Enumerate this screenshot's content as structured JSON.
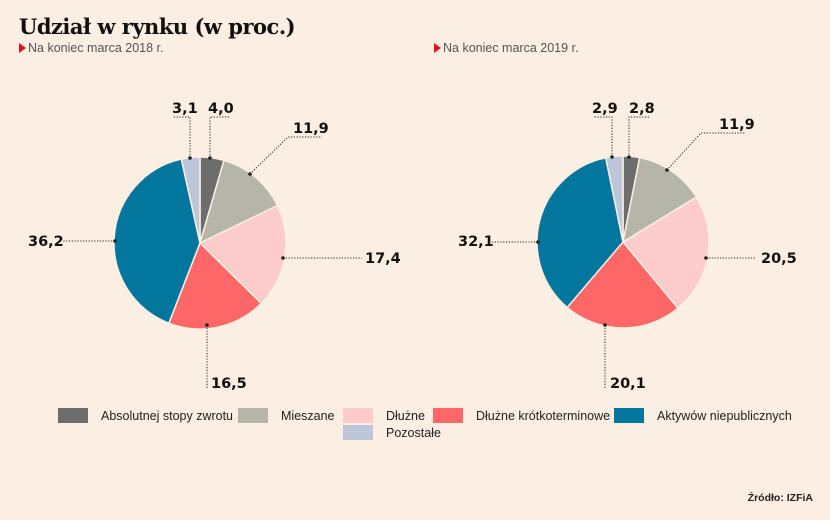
{
  "title": "Udział w rynku (w proc.)",
  "source": "Źródło: IZFiA",
  "colors": {
    "background": "#fbeee2",
    "subtitle_marker": "#e2121b",
    "Absolutnej stopy zwrotu": "#6d6d6d",
    "Mieszane": "#b6b5aa",
    "Dłużne": "#fccbcb",
    "Dłużne krótkoterminowe": "#fd6767",
    "Aktywów niepublicznych": "#03769e",
    "Pozostałe": "#bcc6d8"
  },
  "legend": [
    {
      "label": "Absolutnej stopy zwrotu",
      "color": "#6d6d6d"
    },
    {
      "label": "Mieszane",
      "color": "#b6b5aa"
    },
    {
      "label": "Dłużne",
      "color": "#fccbcb"
    },
    {
      "label": "Dłużne krótkoterminowe",
      "color": "#fd6767"
    },
    {
      "label": "Aktywów niepublicznych",
      "color": "#03769e"
    },
    {
      "label": "Pozostałe",
      "color": "#bcc6d8"
    }
  ],
  "chart_data": [
    {
      "type": "pie",
      "title": "Udział w rynku (w proc.)",
      "subtitle": "Na koniec marca 2018 r.",
      "unit": "%",
      "start": "12 o'clock, clockwise",
      "categories": [
        "Absolutnej stopy zwrotu",
        "Mieszane",
        "Dłużne",
        "Dłużne krótkoterminowe",
        "Aktywów niepublicznych",
        "Pozostałe"
      ],
      "values": [
        4.0,
        11.9,
        17.4,
        16.5,
        36.2,
        3.1
      ],
      "labels": [
        "4,0",
        "11,9",
        "17,4",
        "16,5",
        "36,2",
        "3,1"
      ]
    },
    {
      "type": "pie",
      "title": "Udział w rynku (w proc.)",
      "subtitle": "Na koniec marca 2019 r.",
      "unit": "%",
      "start": "12 o'clock, clockwise",
      "categories": [
        "Absolutnej stopy zwrotu",
        "Mieszane",
        "Dłużne",
        "Dłużne krótkoterminowe",
        "Aktywów niepublicznych",
        "Pozostałe"
      ],
      "values": [
        2.8,
        11.9,
        20.5,
        20.1,
        32.1,
        2.9
      ],
      "labels": [
        "2,8",
        "11,9",
        "20,5",
        "20,1",
        "32,1",
        "2,9"
      ]
    }
  ]
}
